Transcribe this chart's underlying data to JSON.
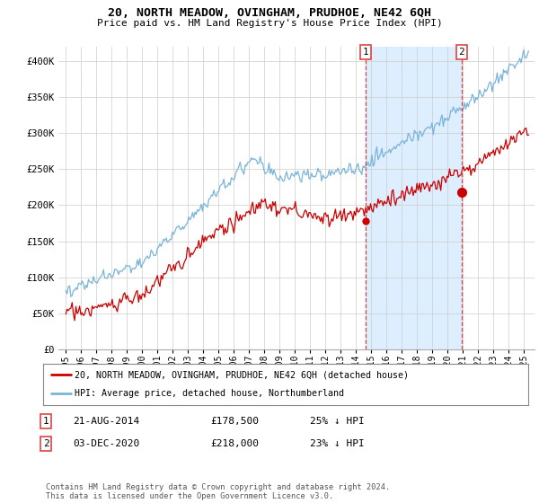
{
  "title": "20, NORTH MEADOW, OVINGHAM, PRUDHOE, NE42 6QH",
  "subtitle": "Price paid vs. HM Land Registry's House Price Index (HPI)",
  "ylabel_ticks": [
    "£0",
    "£50K",
    "£100K",
    "£150K",
    "£200K",
    "£250K",
    "£300K",
    "£350K",
    "£400K"
  ],
  "ytick_values": [
    0,
    50000,
    100000,
    150000,
    200000,
    250000,
    300000,
    350000,
    400000
  ],
  "ylim": [
    0,
    420000
  ],
  "xlim_start": 1994.5,
  "xlim_end": 2025.7,
  "hpi_color": "#7ab4d8",
  "price_color": "#cc0000",
  "shade_color": "#ddeeff",
  "dashed_color": "#dd4444",
  "marker1_date": 2014.646,
  "marker2_date": 2020.922,
  "marker1_price": 178500,
  "marker2_price": 218000,
  "legend_line1": "20, NORTH MEADOW, OVINGHAM, PRUDHOE, NE42 6QH (detached house)",
  "legend_line2": "HPI: Average price, detached house, Northumberland",
  "table_row1": [
    "1",
    "21-AUG-2014",
    "£178,500",
    "25% ↓ HPI"
  ],
  "table_row2": [
    "2",
    "03-DEC-2020",
    "£218,000",
    "23% ↓ HPI"
  ],
  "footer": "Contains HM Land Registry data © Crown copyright and database right 2024.\nThis data is licensed under the Open Government Licence v3.0.",
  "background_color": "#ffffff",
  "grid_color": "#cccccc",
  "xtick_years": [
    1995,
    1996,
    1997,
    1998,
    1999,
    2000,
    2001,
    2002,
    2003,
    2004,
    2005,
    2006,
    2007,
    2008,
    2009,
    2010,
    2011,
    2012,
    2013,
    2014,
    2015,
    2016,
    2017,
    2018,
    2019,
    2020,
    2021,
    2022,
    2023,
    2024,
    2025
  ]
}
